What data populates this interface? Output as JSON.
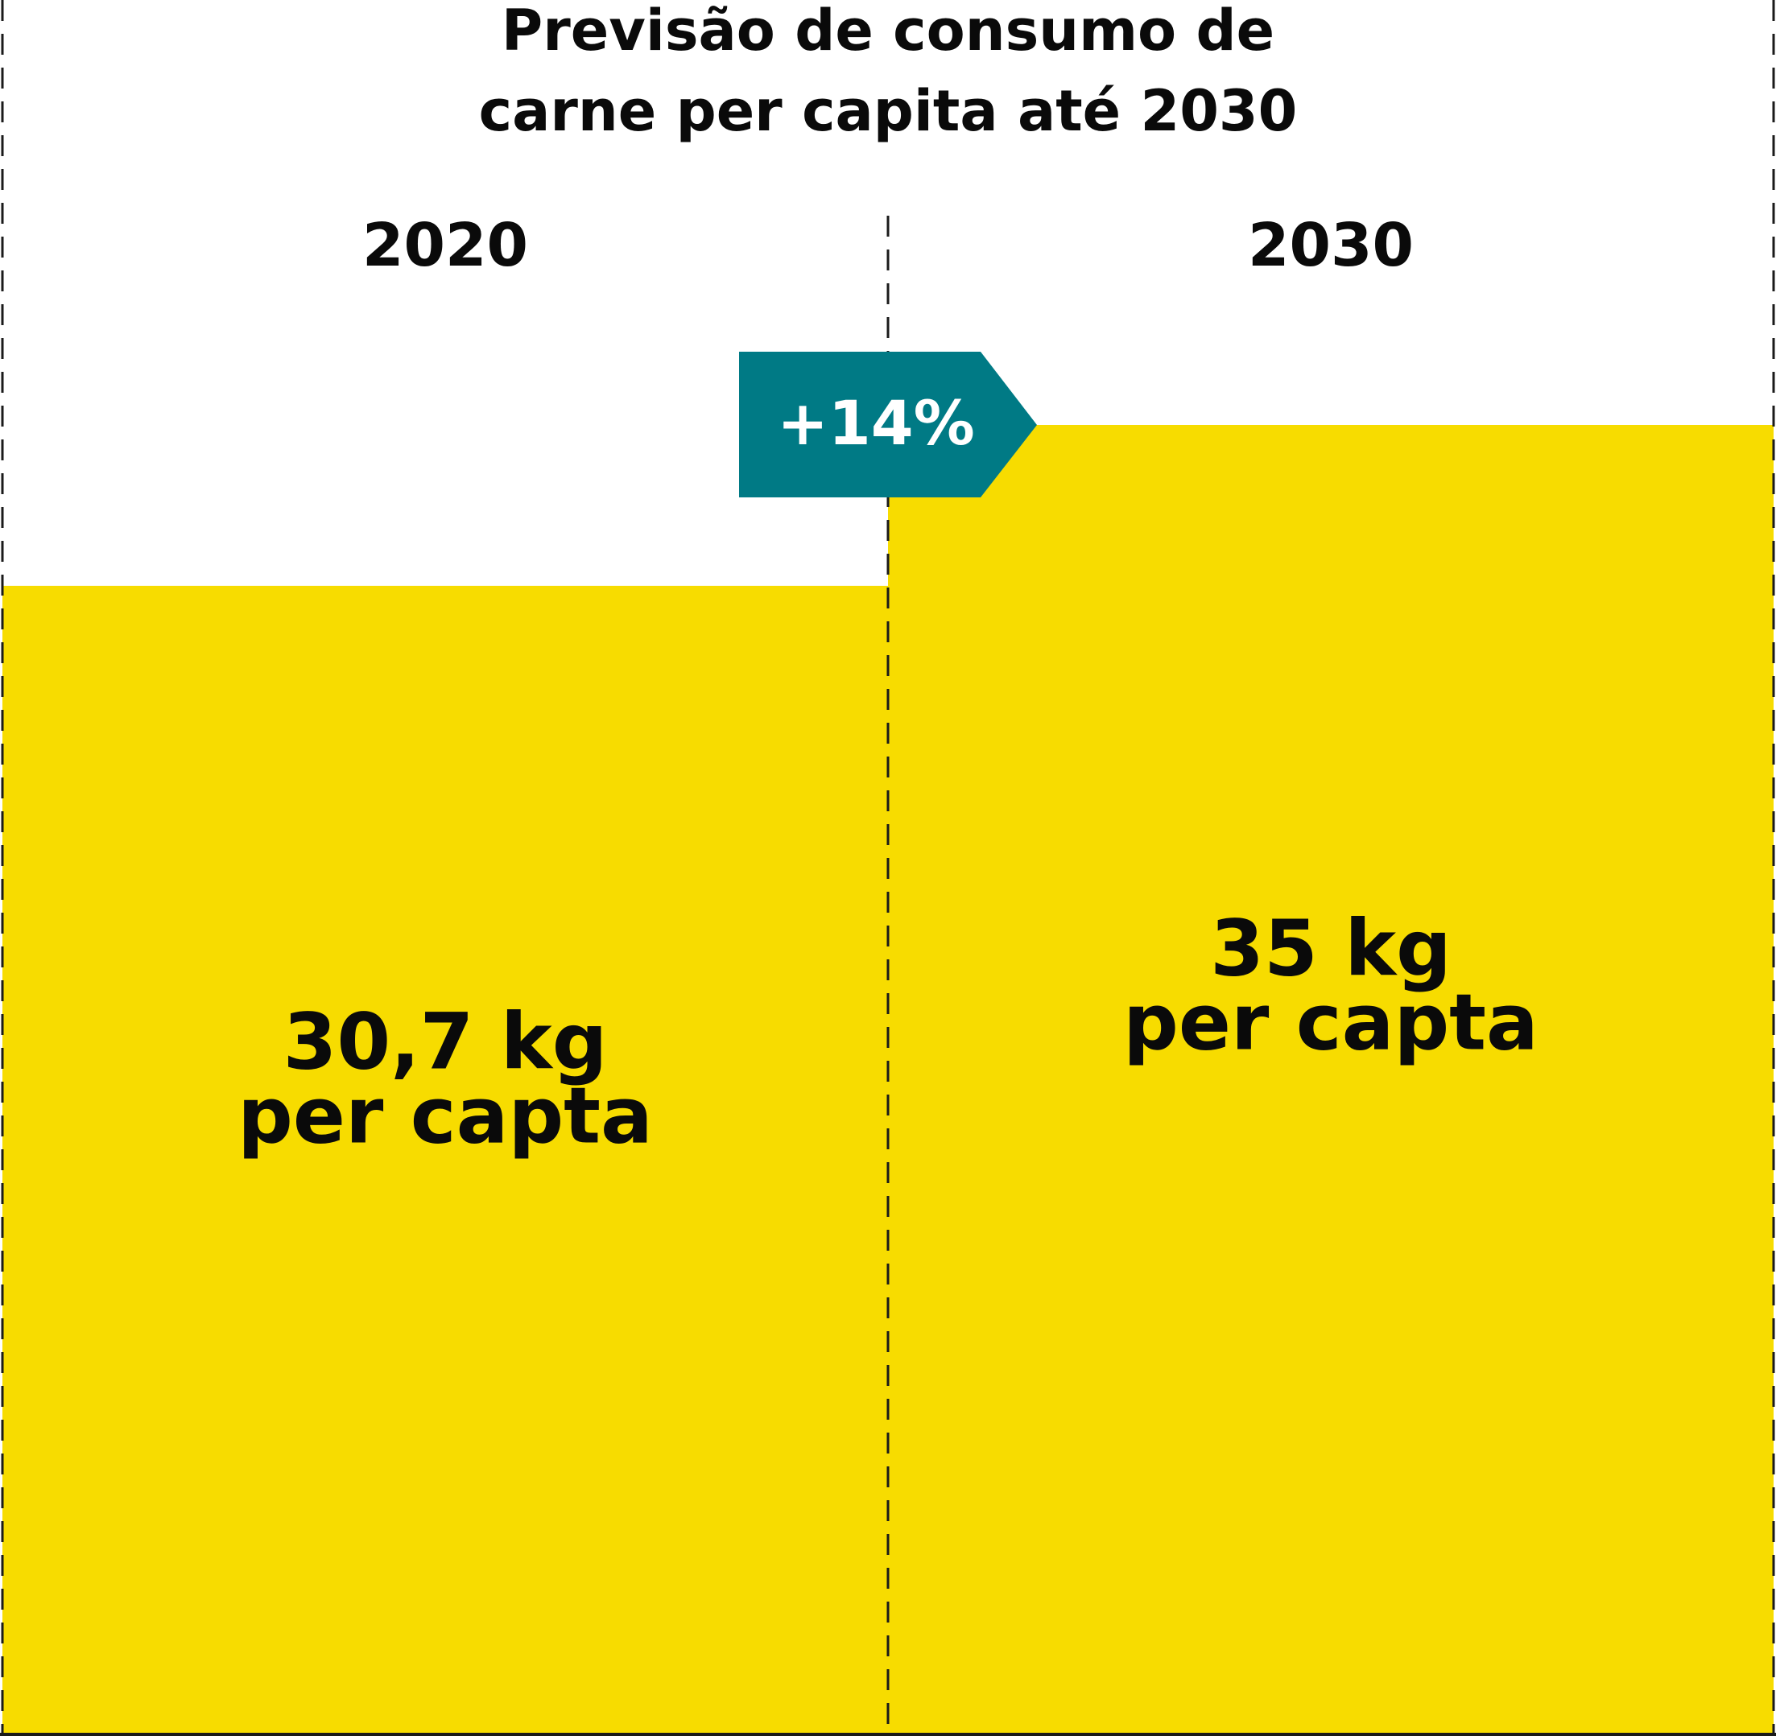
{
  "chart_data": {
    "type": "bar",
    "title_lines": [
      "Previsão de consumo de",
      "carne per capita até 2030"
    ],
    "categories": [
      "2020",
      "2030"
    ],
    "values": [
      30.7,
      35
    ],
    "unit": "kg",
    "value_labels": [
      {
        "line1": "30,7 kg",
        "line2": "per capta"
      },
      {
        "line1": "35 kg",
        "line2": "per capta"
      }
    ],
    "change_label": "+14%",
    "colors": {
      "bar": "#F7DC00",
      "badge": "#007A85",
      "text": "#0A0A0A",
      "dashes": "#1A1A1A"
    }
  }
}
